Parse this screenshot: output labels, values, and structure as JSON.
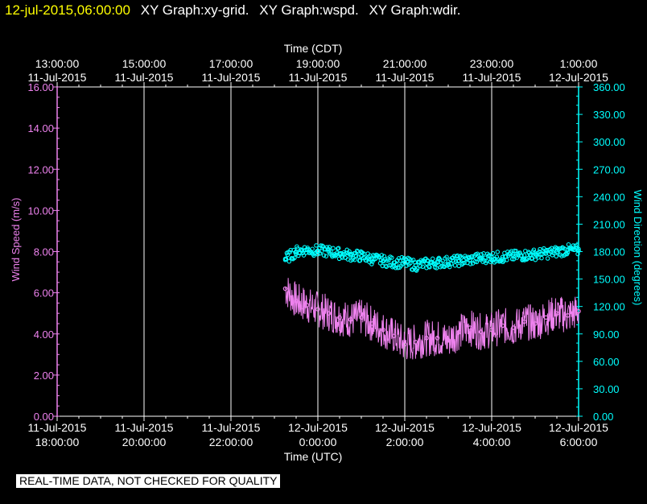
{
  "header": {
    "timestamp": "12-jul-2015,06:00:00",
    "graph_labels": [
      "XY Graph:xy-grid.",
      "XY Graph:wspd.",
      "XY Graph:wdir."
    ]
  },
  "disclaimer": "REAL-TIME DATA, NOT CHECKED FOR QUALITY",
  "colors": {
    "wspd": "#ee82ee",
    "wdir": "#00ffff",
    "grid": "#ffffff",
    "axis_text": "#ffffff"
  },
  "chart_data": {
    "type": "line",
    "top_axis": {
      "title": "Time (CDT)",
      "ticks": [
        {
          "time": "13:00:00",
          "date": "11-Jul-2015"
        },
        {
          "time": "15:00:00",
          "date": "11-Jul-2015"
        },
        {
          "time": "17:00:00",
          "date": "11-Jul-2015"
        },
        {
          "time": "19:00:00",
          "date": "11-Jul-2015"
        },
        {
          "time": "21:00:00",
          "date": "11-Jul-2015"
        },
        {
          "time": "23:00:00",
          "date": "11-Jul-2015"
        },
        {
          "time": "1:00:00",
          "date": "12-Jul-2015"
        }
      ]
    },
    "bottom_axis": {
      "title": "Time (UTC)",
      "ticks": [
        {
          "date": "11-Jul-2015",
          "time": "18:00:00"
        },
        {
          "date": "11-Jul-2015",
          "time": "20:00:00"
        },
        {
          "date": "11-Jul-2015",
          "time": "22:00:00"
        },
        {
          "date": "12-Jul-2015",
          "time": "0:00:00"
        },
        {
          "date": "12-Jul-2015",
          "time": "2:00:00"
        },
        {
          "date": "12-Jul-2015",
          "time": "4:00:00"
        },
        {
          "date": "12-Jul-2015",
          "time": "6:00:00"
        }
      ],
      "xlim": [
        "2015-07-11 18:00",
        "2015-07-12 06:00"
      ]
    },
    "left_axis": {
      "label": "Wind Speed (m/s)",
      "ylim": [
        0,
        16
      ],
      "ticks": [
        "0.00",
        "2.00",
        "4.00",
        "6.00",
        "8.00",
        "10.00",
        "12.00",
        "14.00",
        "16.00"
      ]
    },
    "right_axis": {
      "label": "Wind Direction (degrees)",
      "ylim": [
        0,
        360
      ],
      "ticks": [
        "0.00",
        "30.00",
        "60.00",
        "90.00",
        "120.00",
        "150.00",
        "180.00",
        "210.00",
        "240.00",
        "270.00",
        "300.00",
        "330.00",
        "360.00"
      ]
    },
    "grid": true,
    "series": [
      {
        "key": "wspd",
        "axis": "left",
        "style": "line",
        "x": [
          "2015-07-11 23:15",
          "2015-07-11 23:30",
          "2015-07-11 23:45",
          "2015-07-12 00:00",
          "2015-07-12 00:15",
          "2015-07-12 00:30",
          "2015-07-12 00:45",
          "2015-07-12 01:00",
          "2015-07-12 01:15",
          "2015-07-12 01:30",
          "2015-07-12 01:45",
          "2015-07-12 02:00",
          "2015-07-12 02:15",
          "2015-07-12 02:30",
          "2015-07-12 02:45",
          "2015-07-12 03:00",
          "2015-07-12 03:15",
          "2015-07-12 03:30",
          "2015-07-12 03:45",
          "2015-07-12 04:00",
          "2015-07-12 04:15",
          "2015-07-12 04:30",
          "2015-07-12 04:45",
          "2015-07-12 05:00",
          "2015-07-12 05:15",
          "2015-07-12 05:30",
          "2015-07-12 05:45",
          "2015-07-12 06:00"
        ],
        "values": [
          6.2,
          5.6,
          5.4,
          5.2,
          5.0,
          4.8,
          4.7,
          4.8,
          4.5,
          4.2,
          3.9,
          3.5,
          3.6,
          3.8,
          3.8,
          3.7,
          4.1,
          4.3,
          4.1,
          4.2,
          4.4,
          4.3,
          4.6,
          4.5,
          4.8,
          5.0,
          4.9,
          5.1
        ],
        "noise": 0.9
      },
      {
        "key": "wdir",
        "axis": "right",
        "style": "circles",
        "x": [
          "2015-07-11 23:15",
          "2015-07-11 23:30",
          "2015-07-11 23:45",
          "2015-07-12 00:00",
          "2015-07-12 00:15",
          "2015-07-12 00:30",
          "2015-07-12 00:45",
          "2015-07-12 01:00",
          "2015-07-12 01:15",
          "2015-07-12 01:30",
          "2015-07-12 01:45",
          "2015-07-12 02:00",
          "2015-07-12 02:15",
          "2015-07-12 02:30",
          "2015-07-12 02:45",
          "2015-07-12 03:00",
          "2015-07-12 03:15",
          "2015-07-12 03:30",
          "2015-07-12 03:45",
          "2015-07-12 04:00",
          "2015-07-12 04:15",
          "2015-07-12 04:30",
          "2015-07-12 04:45",
          "2015-07-12 05:00",
          "2015-07-12 05:15",
          "2015-07-12 05:30",
          "2015-07-12 05:45",
          "2015-07-12 06:00"
        ],
        "values": [
          172,
          180,
          182,
          181,
          180,
          178,
          176,
          175,
          172,
          170,
          168,
          168,
          165,
          167,
          168,
          169,
          170,
          171,
          173,
          174,
          174,
          175,
          176,
          177,
          178,
          180,
          182,
          181
        ],
        "noise": 6
      }
    ]
  }
}
